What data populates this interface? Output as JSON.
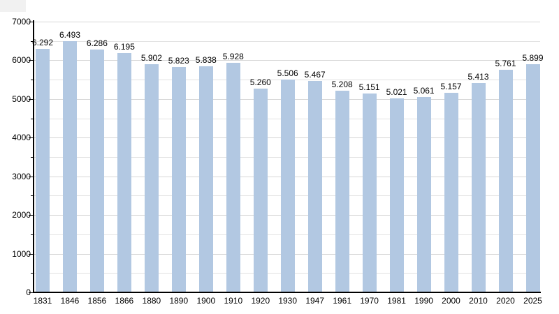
{
  "page": {
    "background_color": "#ffffff",
    "corner_artifact_color": "#f1f1f1"
  },
  "chart_data": {
    "type": "bar",
    "title": "",
    "xlabel": "",
    "ylabel": "",
    "categories": [
      "1831",
      "1846",
      "1856",
      "1866",
      "1880",
      "1890",
      "1900",
      "1910",
      "1920",
      "1930",
      "1947",
      "1961",
      "1970",
      "1981",
      "1990",
      "2000",
      "2010",
      "2020",
      "2025"
    ],
    "values": [
      6292,
      6493,
      6286,
      6195,
      5902,
      5823,
      5838,
      5928,
      5260,
      5506,
      5467,
      5208,
      5151,
      5021,
      5061,
      5157,
      5413,
      5761,
      5899
    ],
    "value_labels": [
      "6.292",
      "6.493",
      "6.286",
      "6.195",
      "5.902",
      "5.823",
      "5.838",
      "5.928",
      "5.260",
      "5.506",
      "5.467",
      "5.208",
      "5.151",
      "5.021",
      "5.061",
      "5.157",
      "5.413",
      "5.761",
      "5.899"
    ],
    "ylim": [
      0,
      7000
    ],
    "y_tick_labels": [
      "0",
      "1000",
      "2000",
      "3000",
      "4000",
      "5000",
      "6000",
      "7000"
    ],
    "y_major_step": 1000,
    "y_minor_step": 500,
    "grid": true,
    "legend": false,
    "bar_color": "#b2c8e2",
    "grid_major_color": "#d6d6d6",
    "grid_minor_color": "#e2e2e2",
    "axis_color": "#000000",
    "text_color": "#000000"
  }
}
